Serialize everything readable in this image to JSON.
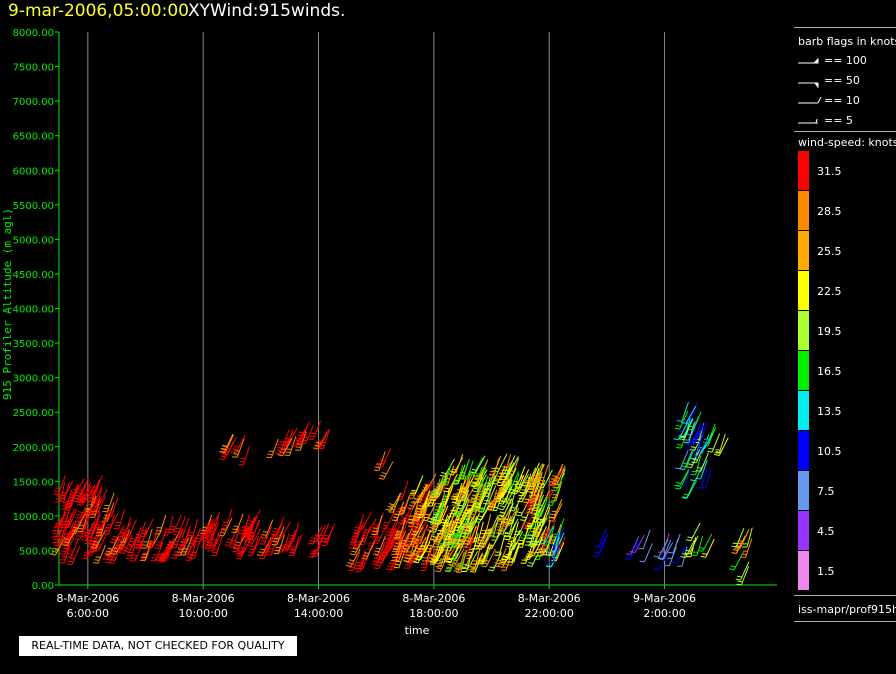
{
  "header": {
    "date": "9-mar-2006,05:00:00",
    "title": "XYWind:915winds."
  },
  "note": "REAL-TIME DATA, NOT CHECKED FOR QUALITY",
  "legend": {
    "barb_title": "barb flags in knots",
    "barbs": [
      "== 100",
      "== 50",
      "== 10",
      "== 5"
    ],
    "speed_title": "wind-speed: knots",
    "colorbar": [
      {
        "label": "31.5",
        "color": "#ff0000"
      },
      {
        "label": "28.5",
        "color": "#ff8800"
      },
      {
        "label": "25.5",
        "color": "#ffaa00"
      },
      {
        "label": "22.5",
        "color": "#ffff00"
      },
      {
        "label": "19.5",
        "color": "#aaff33"
      },
      {
        "label": "16.5",
        "color": "#00ee00"
      },
      {
        "label": "13.5",
        "color": "#00eeee"
      },
      {
        "label": "10.5",
        "color": "#0000ff"
      },
      {
        "label": "7.5",
        "color": "#6699ee"
      },
      {
        "label": "4.5",
        "color": "#9933ff"
      },
      {
        "label": "1.5",
        "color": "#ee88ee"
      }
    ],
    "source": "iss-mapr/prof915h"
  },
  "chart_data": {
    "type": "scatter",
    "ylabel": "915 Profiler Altitude (m agl)",
    "xlabel": "time",
    "ylim": [
      0,
      8000
    ],
    "yticks": [
      "0.00",
      "500.00",
      "1000.00",
      "1500.00",
      "2000.00",
      "2500.00",
      "3000.00",
      "3500.00",
      "4000.00",
      "4500.00",
      "5000.00",
      "5500.00",
      "6000.00",
      "6500.00",
      "7000.00",
      "7500.00",
      "8000.00"
    ],
    "xticks": [
      {
        "date": "8-Mar-2006",
        "time": "6:00:00",
        "hours": 6
      },
      {
        "date": "8-Mar-2006",
        "time": "10:00:00",
        "hours": 10
      },
      {
        "date": "8-Mar-2006",
        "time": "14:00:00",
        "hours": 14
      },
      {
        "date": "8-Mar-2006",
        "time": "18:00:00",
        "hours": 18
      },
      {
        "date": "8-Mar-2006",
        "time": "22:00:00",
        "hours": 22
      },
      {
        "date": "9-Mar-2006",
        "time": "2:00:00",
        "hours": 26
      }
    ],
    "xlim_hours": [
      5.0,
      29.9
    ],
    "grid": "vertical at ticks",
    "clusters": [
      {
        "t": [
          5.0,
          7.1
        ],
        "alt": [
          550,
          1600
        ],
        "speed": [
          29,
          34
        ]
      },
      {
        "t": [
          6.9,
          7.5
        ],
        "alt": [
          550,
          1100
        ],
        "speed": [
          29,
          34
        ]
      },
      {
        "t": [
          7.5,
          10.0
        ],
        "alt": [
          600,
          1050
        ],
        "speed": [
          29,
          34
        ]
      },
      {
        "t": [
          10.0,
          12.0
        ],
        "alt": [
          650,
          1100
        ],
        "speed": [
          29,
          34
        ]
      },
      {
        "t": [
          12.0,
          13.5
        ],
        "alt": [
          650,
          1000
        ],
        "speed": [
          29,
          34
        ]
      },
      {
        "t": [
          11.0,
          11.9
        ],
        "alt": [
          2000,
          2200
        ],
        "speed": [
          29,
          34
        ]
      },
      {
        "t": [
          12.6,
          13.5
        ],
        "alt": [
          2100,
          2300
        ],
        "speed": [
          29,
          34
        ]
      },
      {
        "t": [
          13.4,
          14.4
        ],
        "alt": [
          2150,
          2400
        ],
        "speed": [
          29,
          34
        ]
      },
      {
        "t": [
          14.0,
          14.6
        ],
        "alt": [
          650,
          950
        ],
        "speed": [
          29,
          34
        ]
      },
      {
        "t": [
          16.3,
          16.6
        ],
        "alt": [
          1700,
          2000
        ],
        "speed": [
          27,
          32
        ]
      },
      {
        "t": [
          15.4,
          17.5
        ],
        "alt": [
          450,
          1100
        ],
        "speed": [
          29,
          34
        ]
      },
      {
        "t": [
          16.8,
          18.0
        ],
        "alt": [
          500,
          1550
        ],
        "speed": [
          25,
          33
        ]
      },
      {
        "t": [
          17.5,
          19.6
        ],
        "alt": [
          450,
          1650
        ],
        "speed": [
          21,
          31
        ]
      },
      {
        "t": [
          18.2,
          20.0
        ],
        "alt": [
          450,
          1900
        ],
        "speed": [
          16,
          26
        ]
      },
      {
        "t": [
          19.6,
          21.0
        ],
        "alt": [
          450,
          1900
        ],
        "speed": [
          19,
          30
        ]
      },
      {
        "t": [
          20.6,
          21.9
        ],
        "alt": [
          450,
          1900
        ],
        "speed": [
          16,
          24
        ]
      },
      {
        "t": [
          21.5,
          22.6
        ],
        "alt": [
          500,
          1800
        ],
        "speed": [
          15,
          32
        ]
      },
      {
        "t": [
          22.0,
          22.6
        ],
        "alt": [
          500,
          900
        ],
        "speed": [
          9,
          15
        ]
      },
      {
        "t": [
          23.9,
          24.1
        ],
        "alt": [
          550,
          850
        ],
        "speed": [
          9,
          12
        ]
      },
      {
        "t": [
          25.1,
          25.6
        ],
        "alt": [
          600,
          850
        ],
        "speed": [
          4,
          11
        ]
      },
      {
        "t": [
          26.1,
          26.8
        ],
        "alt": [
          450,
          850
        ],
        "speed": [
          4,
          11
        ]
      },
      {
        "t": [
          26.7,
          27.4
        ],
        "alt": [
          1500,
          2650
        ],
        "speed": [
          6,
          20
        ]
      },
      {
        "t": [
          27.2,
          27.8
        ],
        "alt": [
          1600,
          2400
        ],
        "speed": [
          10,
          20
        ]
      },
      {
        "t": [
          27.0,
          27.8
        ],
        "alt": [
          650,
          900
        ],
        "speed": [
          16,
          22
        ]
      },
      {
        "t": [
          27.8,
          28.4
        ],
        "alt": [
          2050,
          2200
        ],
        "speed": [
          15,
          22
        ]
      },
      {
        "t": [
          28.7,
          29.1
        ],
        "alt": [
          250,
          900
        ],
        "speed": [
          16,
          30
        ]
      }
    ]
  }
}
